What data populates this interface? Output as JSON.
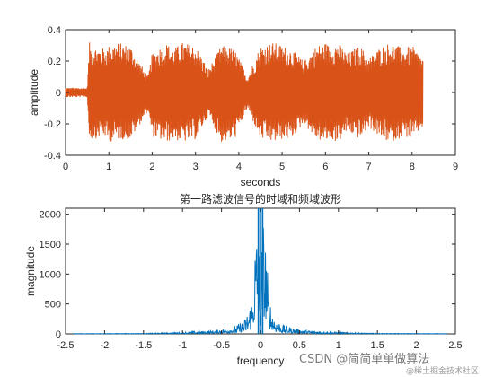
{
  "figure_title": "第一路滤波信号的时域和频域波形",
  "watermark": {
    "main": "CSDN @简简单单做算法",
    "sub": "@稀土掘金技术社区"
  },
  "chart_data": [
    {
      "type": "line",
      "title": "",
      "xlabel": "seconds",
      "ylabel": "amplitude",
      "xlim": [
        0,
        9
      ],
      "ylim": [
        -0.4,
        0.4
      ],
      "xticks": [
        0,
        1,
        2,
        3,
        4,
        5,
        6,
        7,
        8,
        9
      ],
      "xtick_labels": [
        "0",
        "1",
        "2",
        "3",
        "4",
        "5",
        "6",
        "7",
        "8",
        "9"
      ],
      "yticks": [
        -0.4,
        -0.2,
        0,
        0.2,
        0.4
      ],
      "ytick_labels": [
        "-0.4",
        "-0.2",
        "0",
        "0.2",
        "0.4"
      ],
      "grid": false,
      "color": "#D95319",
      "series": [
        {
          "x": [
            0,
            0.5,
            0.55,
            0.6,
            0.9,
            1.0,
            1.2,
            1.5,
            1.9,
            2.0,
            2.3,
            2.5,
            2.7,
            3.0,
            3.3,
            3.6,
            3.9,
            4.2,
            4.5,
            4.8,
            5.0,
            5.2,
            5.5,
            5.8,
            6.0,
            6.1,
            6.3,
            6.5,
            6.8,
            7.0,
            7.3,
            7.5,
            7.8,
            8.0,
            8.25
          ],
          "y_max": [
            0.03,
            0.03,
            0.32,
            0.3,
            0.28,
            0.3,
            0.32,
            0.3,
            0.1,
            0.25,
            0.32,
            0.28,
            0.32,
            0.3,
            0.15,
            0.3,
            0.28,
            0.1,
            0.3,
            0.32,
            0.3,
            0.28,
            0.2,
            0.3,
            0.32,
            0.3,
            0.32,
            0.25,
            0.3,
            0.22,
            0.3,
            0.32,
            0.28,
            0.3,
            0.22
          ],
          "y_min": [
            -0.03,
            -0.03,
            -0.3,
            -0.3,
            -0.28,
            -0.32,
            -0.3,
            -0.3,
            -0.12,
            -0.28,
            -0.32,
            -0.3,
            -0.32,
            -0.3,
            -0.15,
            -0.32,
            -0.3,
            -0.1,
            -0.3,
            -0.32,
            -0.3,
            -0.3,
            -0.2,
            -0.3,
            -0.32,
            -0.3,
            -0.32,
            -0.25,
            -0.3,
            -0.22,
            -0.3,
            -0.32,
            -0.28,
            -0.3,
            -0.22
          ]
        }
      ]
    },
    {
      "type": "line",
      "title": "第一路滤波信号的时域和频域波形",
      "xlabel": "frequency",
      "ylabel": "magnitude",
      "xlim": [
        -2.5,
        2.5
      ],
      "ylim": [
        0,
        2100
      ],
      "xticks": [
        -2.5,
        -2,
        -1.5,
        -1,
        -0.5,
        0,
        0.5,
        1,
        1.5,
        2,
        2.5
      ],
      "xtick_labels": [
        "-2.5",
        "-2",
        "-1.5",
        "-1",
        "-0.5",
        "0",
        "0.5",
        "1",
        "1.5",
        "2",
        "2.5"
      ],
      "yticks": [
        0,
        500,
        1000,
        1500,
        2000
      ],
      "ytick_labels": [
        "0",
        "500",
        "1000",
        "1500",
        "2000"
      ],
      "grid": false,
      "color": "#0072BD",
      "series": [
        {
          "x": [
            -2.4,
            -1.5,
            -1.0,
            -0.6,
            -0.4,
            -0.3,
            -0.2,
            -0.15,
            -0.1,
            -0.08,
            -0.05,
            -0.03,
            0,
            0.03,
            0.05,
            0.08,
            0.1,
            0.15,
            0.2,
            0.3,
            0.4,
            0.6,
            1.0,
            1.5,
            2.4
          ],
          "y": [
            5,
            10,
            30,
            60,
            110,
            150,
            260,
            450,
            700,
            1500,
            1900,
            2100,
            900,
            2100,
            1900,
            1500,
            700,
            450,
            260,
            150,
            110,
            60,
            30,
            10,
            5
          ]
        }
      ]
    }
  ]
}
